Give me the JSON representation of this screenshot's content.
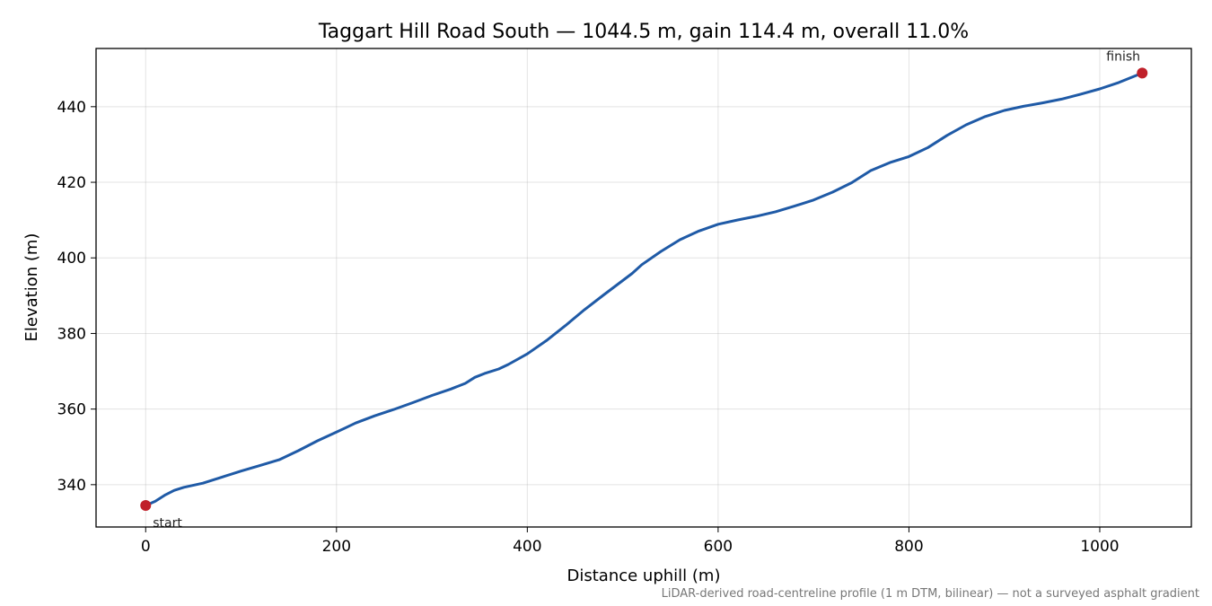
{
  "chart_data": {
    "type": "line",
    "title": "Taggart Hill Road South — 1044.5 m, gain 114.4 m, overall 11.0%",
    "xlabel": "Distance uphill (m)",
    "ylabel": "Elevation (m)",
    "footnote": "LiDAR-derived road-centreline profile (1 m DTM, bilinear) — not a surveyed asphalt gradient",
    "xlim": [
      -52,
      1096
    ],
    "ylim": [
      328.8,
      455.4
    ],
    "x_ticks": [
      0,
      200,
      400,
      600,
      800,
      1000
    ],
    "x_tick_labels": [
      "0",
      "200",
      "400",
      "600",
      "800",
      "1000"
    ],
    "y_ticks": [
      340,
      360,
      380,
      400,
      420,
      440
    ],
    "y_tick_labels": [
      "340",
      "360",
      "380",
      "400",
      "420",
      "440"
    ],
    "grid": true,
    "line_color": "#1f5aa6",
    "marker_color": "#c0202a",
    "series": [
      {
        "x": [
          0,
          10,
          20,
          30,
          40,
          60,
          80,
          100,
          120,
          140,
          160,
          180,
          200,
          220,
          240,
          260,
          280,
          300,
          320,
          335,
          345,
          355,
          370,
          380,
          400,
          420,
          440,
          460,
          480,
          500,
          510,
          520,
          540,
          560,
          580,
          600,
          620,
          640,
          660,
          680,
          700,
          720,
          740,
          760,
          780,
          800,
          820,
          840,
          860,
          880,
          900,
          920,
          940,
          960,
          980,
          1000,
          1020,
          1044.5
        ],
        "y": [
          334.5,
          335.6,
          337.2,
          338.5,
          339.3,
          340.4,
          342.0,
          343.6,
          345.1,
          346.6,
          349.0,
          351.6,
          353.9,
          356.3,
          358.2,
          359.9,
          361.7,
          363.6,
          365.3,
          366.8,
          368.4,
          369.4,
          370.6,
          371.8,
          374.6,
          378.1,
          382.1,
          386.3,
          390.2,
          394.0,
          395.9,
          398.2,
          401.7,
          404.8,
          407.1,
          408.9,
          410.0,
          411.0,
          412.2,
          413.7,
          415.3,
          417.4,
          419.9,
          423.1,
          425.2,
          426.8,
          429.2,
          432.4,
          435.2,
          437.4,
          439.0,
          440.1,
          441.0,
          442.0,
          443.3,
          444.7,
          446.4,
          448.9
        ]
      }
    ],
    "annotations": [
      {
        "label": "start",
        "x": 0,
        "y": 334.5
      },
      {
        "label": "finish",
        "x": 1044.5,
        "y": 448.9
      }
    ]
  }
}
